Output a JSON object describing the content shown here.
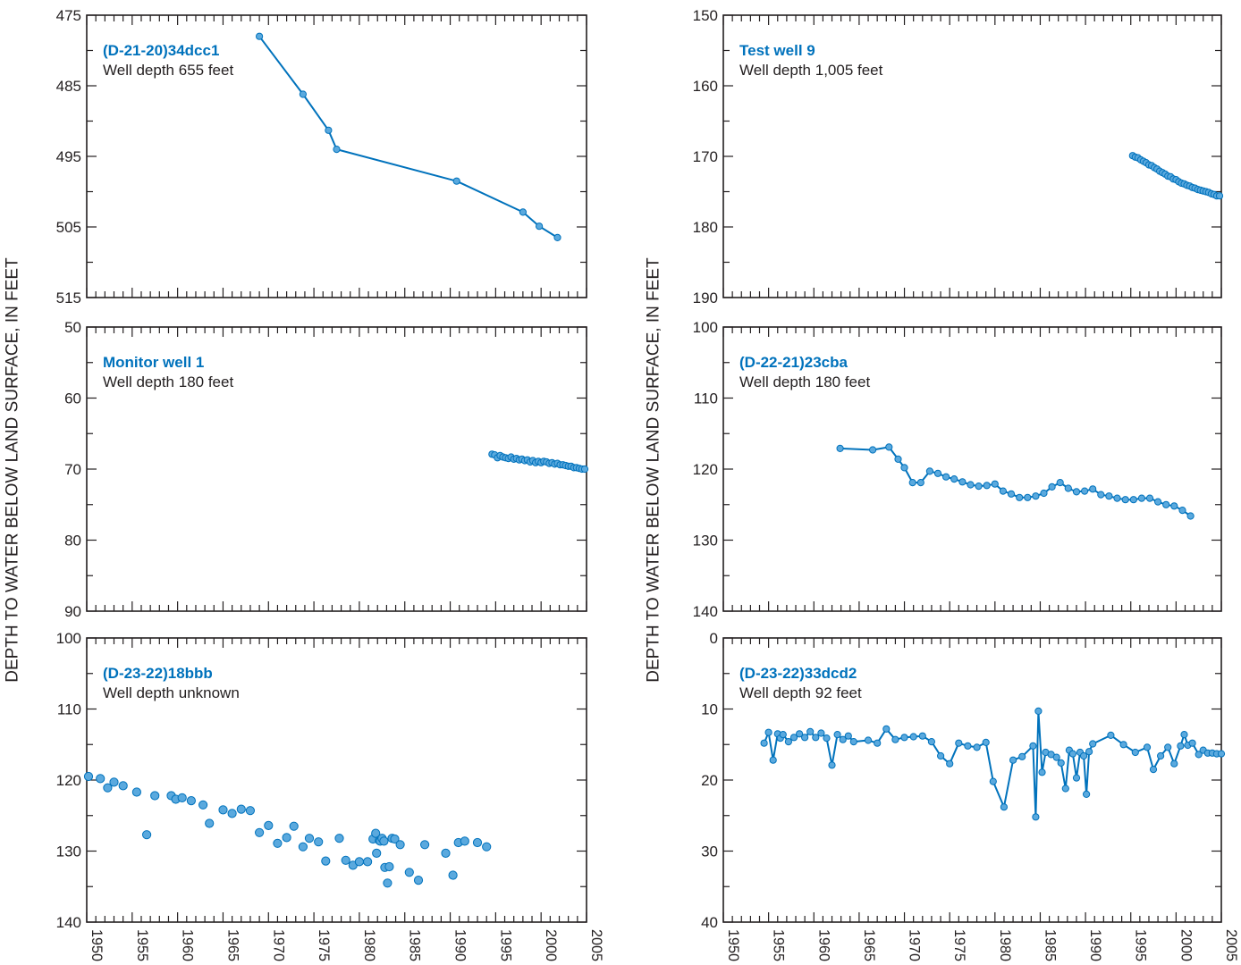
{
  "ylabel_text": "DEPTH TO WATER BELOW LAND SURFACE, IN FEET",
  "colors": {
    "series": "#0072bc",
    "point_fill": "#5aa9de",
    "axis": "#231f20"
  },
  "chart_data": [
    {
      "type": "line",
      "title": "(D-21-20)34dcc1",
      "subtitle": "Well depth 655 feet",
      "xlim": [
        1950,
        2005
      ],
      "ylim": [
        475,
        515
      ],
      "y_inverted": true,
      "yticks": [
        "475",
        "485",
        "495",
        "505",
        "515"
      ],
      "x": [
        1969.0,
        1973.8,
        1976.6,
        1977.5,
        1990.7,
        1998.0,
        1999.8,
        2001.8
      ],
      "y": [
        478.0,
        486.2,
        491.3,
        494.0,
        498.5,
        502.9,
        504.9,
        506.5
      ]
    },
    {
      "type": "line",
      "title": "Test well 9",
      "subtitle": "Well depth 1,005 feet",
      "xlim": [
        1950,
        2005
      ],
      "ylim": [
        150,
        190
      ],
      "y_inverted": true,
      "yticks": [
        "150",
        "160",
        "170",
        "180",
        "190"
      ],
      "x": [
        1995.2,
        1995.5,
        1995.8,
        1996.1,
        1996.4,
        1996.7,
        1997.0,
        1997.3,
        1997.6,
        1997.9,
        1998.2,
        1998.5,
        1998.8,
        1999.1,
        1999.4,
        1999.7,
        2000.0,
        2000.3,
        2000.6,
        2000.9,
        2001.2,
        2001.5,
        2001.8,
        2002.1,
        2002.4,
        2002.7,
        2003.0,
        2003.3,
        2003.6,
        2003.9,
        2004.2,
        2004.5,
        2004.8
      ],
      "y": [
        169.9,
        170.1,
        170.2,
        170.5,
        170.7,
        170.9,
        171.2,
        171.3,
        171.6,
        171.8,
        172.1,
        172.3,
        172.5,
        172.8,
        172.9,
        173.2,
        173.3,
        173.6,
        173.8,
        173.9,
        174.1,
        174.2,
        174.4,
        174.5,
        174.7,
        174.8,
        174.9,
        175.0,
        175.1,
        175.3,
        175.4,
        175.6,
        175.6
      ]
    },
    {
      "type": "line",
      "title": "Monitor well 1",
      "subtitle": "Well depth 180 feet",
      "xlim": [
        1950,
        2005
      ],
      "ylim": [
        50,
        90
      ],
      "y_inverted": true,
      "yticks": [
        "50",
        "60",
        "70",
        "80",
        "90"
      ],
      "x": [
        1994.6,
        1994.9,
        1995.2,
        1995.5,
        1995.8,
        1996.1,
        1996.4,
        1996.7,
        1997.0,
        1997.3,
        1997.6,
        1997.9,
        1998.2,
        1998.5,
        1998.8,
        1999.1,
        1999.4,
        1999.7,
        2000.0,
        2000.3,
        2000.6,
        2000.9,
        2001.2,
        2001.5,
        2001.8,
        2002.1,
        2002.4,
        2002.7,
        2003.0,
        2003.3,
        2003.6,
        2003.9,
        2004.2,
        2004.5,
        2004.8
      ],
      "y": [
        67.9,
        68.0,
        68.4,
        68.1,
        68.3,
        68.4,
        68.5,
        68.3,
        68.6,
        68.5,
        68.7,
        68.6,
        68.8,
        68.7,
        69.0,
        68.8,
        69.1,
        68.9,
        69.1,
        68.9,
        69.0,
        69.2,
        69.1,
        69.3,
        69.2,
        69.4,
        69.4,
        69.5,
        69.6,
        69.6,
        69.8,
        69.8,
        69.9,
        70.0,
        70.0
      ]
    },
    {
      "type": "line",
      "title": "(D-22-21)23cba",
      "subtitle": "Well depth 180 feet",
      "xlim": [
        1950,
        2005
      ],
      "ylim": [
        100,
        140
      ],
      "y_inverted": true,
      "yticks": [
        "100",
        "110",
        "120",
        "130",
        "140"
      ],
      "x": [
        1962.9,
        1966.5,
        1968.3,
        1969.3,
        1970.0,
        1970.9,
        1971.8,
        1972.8,
        1973.7,
        1974.6,
        1975.5,
        1976.4,
        1977.3,
        1978.2,
        1979.1,
        1980.0,
        1980.9,
        1981.8,
        1982.7,
        1983.6,
        1984.5,
        1985.4,
        1986.3,
        1987.2,
        1988.1,
        1989.0,
        1989.9,
        1990.8,
        1991.7,
        1992.6,
        1993.5,
        1994.4,
        1995.3,
        1996.2,
        1997.1,
        1998.0,
        1998.9,
        1999.8,
        2000.7,
        2001.6
      ],
      "y": [
        117.1,
        117.3,
        116.9,
        118.6,
        119.8,
        121.9,
        121.9,
        120.3,
        120.6,
        121.1,
        121.4,
        121.8,
        122.2,
        122.4,
        122.3,
        122.1,
        123.1,
        123.5,
        124.0,
        124.0,
        123.8,
        123.4,
        122.5,
        121.9,
        122.7,
        123.2,
        123.1,
        122.8,
        123.6,
        123.8,
        124.1,
        124.3,
        124.3,
        124.1,
        124.1,
        124.6,
        125.0,
        125.2,
        125.8,
        126.6
      ]
    },
    {
      "type": "scatter",
      "title": "(D-23-22)18bbb",
      "subtitle": "Well depth unknown",
      "xlim": [
        1950,
        2005
      ],
      "ylim": [
        100,
        140
      ],
      "y_inverted": true,
      "yticks": [
        "100",
        "110",
        "120",
        "130",
        "140"
      ],
      "x": [
        1950.2,
        1951.5,
        1952.3,
        1953.0,
        1954.0,
        1955.5,
        1956.6,
        1957.5,
        1959.3,
        1959.8,
        1960.5,
        1961.5,
        1962.8,
        1963.5,
        1965.0,
        1966.0,
        1967.0,
        1968.0,
        1969.0,
        1970.0,
        1971.0,
        1972.0,
        1972.8,
        1973.8,
        1974.5,
        1975.5,
        1976.3,
        1977.8,
        1978.5,
        1979.3,
        1980.0,
        1980.9,
        1981.5,
        1981.8,
        1981.9,
        1982.2,
        1982.3,
        1982.5,
        1982.7,
        1982.8,
        1983.1,
        1983.3,
        1983.6,
        1983.9,
        1984.5,
        1985.5,
        1986.5,
        1987.2,
        1989.5,
        1990.3,
        1990.9,
        1991.6,
        1993.0,
        1994.0
      ],
      "y": [
        119.5,
        119.8,
        121.1,
        120.3,
        120.8,
        121.7,
        127.7,
        122.2,
        122.2,
        122.7,
        122.5,
        122.9,
        123.5,
        126.1,
        124.2,
        124.7,
        124.1,
        124.3,
        127.4,
        126.4,
        128.9,
        128.1,
        126.5,
        129.4,
        128.2,
        128.7,
        131.4,
        128.2,
        131.3,
        132.0,
        131.5,
        131.5,
        128.3,
        127.5,
        130.3,
        128.5,
        128.6,
        128.2,
        128.6,
        132.3,
        134.5,
        132.2,
        128.2,
        128.3,
        129.1,
        133.0,
        134.1,
        129.1,
        130.3,
        133.4,
        128.8,
        128.6,
        128.8,
        129.4
      ]
    },
    {
      "type": "line",
      "title": "(D-23-22)33dcd2",
      "subtitle": "Well depth 92 feet",
      "xlim": [
        1950,
        2005
      ],
      "ylim": [
        0,
        40
      ],
      "y_inverted": true,
      "yticks": [
        "0",
        "10",
        "20",
        "30",
        "40"
      ],
      "x": [
        1954.5,
        1955.0,
        1955.5,
        1956.0,
        1956.3,
        1956.6,
        1957.2,
        1957.8,
        1958.4,
        1959.0,
        1959.6,
        1960.2,
        1960.8,
        1961.4,
        1962.0,
        1962.6,
        1963.2,
        1963.8,
        1964.4,
        1966.0,
        1967.0,
        1968.0,
        1969.0,
        1970.0,
        1971.0,
        1972.0,
        1973.0,
        1974.0,
        1975.0,
        1976.0,
        1977.0,
        1978.0,
        1979.0,
        1979.8,
        1981.0,
        1982.0,
        1983.0,
        1984.2,
        1984.5,
        1984.8,
        1985.2,
        1985.6,
        1986.2,
        1986.8,
        1987.3,
        1987.8,
        1988.2,
        1988.6,
        1989.0,
        1989.4,
        1989.8,
        1990.1,
        1990.4,
        1990.8,
        1992.8,
        1994.2,
        1995.5,
        1996.8,
        1997.5,
        1998.3,
        1999.1,
        1999.8,
        2000.5,
        2000.9,
        2001.3,
        2001.8,
        2002.5,
        2003.0,
        2003.5,
        2004.0,
        2004.5,
        2005.0
      ],
      "y": [
        14.8,
        13.3,
        17.2,
        13.5,
        14.1,
        13.6,
        14.6,
        14.0,
        13.5,
        14.0,
        13.2,
        14.0,
        13.4,
        14.1,
        17.9,
        13.6,
        14.3,
        13.8,
        14.6,
        14.4,
        14.8,
        12.8,
        14.3,
        14.0,
        13.9,
        13.8,
        14.6,
        16.6,
        17.7,
        14.8,
        15.2,
        15.4,
        14.7,
        20.2,
        23.8,
        17.2,
        16.7,
        15.2,
        25.2,
        10.3,
        18.9,
        16.1,
        16.4,
        16.8,
        17.6,
        21.2,
        15.8,
        16.3,
        19.7,
        16.1,
        16.6,
        22.0,
        16.0,
        14.9,
        13.7,
        15.0,
        16.1,
        15.4,
        18.5,
        16.6,
        15.4,
        17.7,
        15.2,
        13.6,
        15.1,
        14.8,
        16.4,
        15.8,
        16.2,
        16.2,
        16.3,
        16.3
      ]
    }
  ],
  "xticks": [
    "1950",
    "1955",
    "1960",
    "1965",
    "1970",
    "1975",
    "1980",
    "1985",
    "1990",
    "1995",
    "2000",
    "2005"
  ]
}
